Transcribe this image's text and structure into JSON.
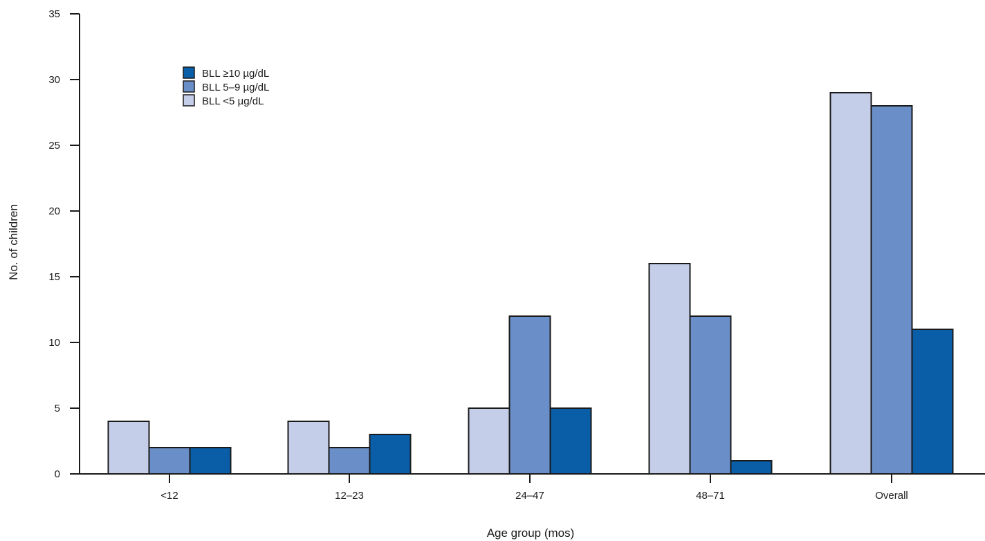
{
  "chart_data": {
    "type": "bar",
    "title": "",
    "xlabel": "Age group (mos)",
    "ylabel": "No. of children",
    "ylim": [
      0,
      35
    ],
    "yticks": [
      0,
      5,
      10,
      15,
      20,
      25,
      30,
      35
    ],
    "categories": [
      "<12",
      "12–23",
      "24–47",
      "48–71",
      "Overall"
    ],
    "series": [
      {
        "name": "BLL <5 µg/dL",
        "values": [
          4,
          4,
          5,
          16,
          29
        ],
        "color": "#c5cee8"
      },
      {
        "name": "BLL  5–9 µg/dL",
        "values": [
          2,
          2,
          12,
          12,
          28
        ],
        "color": "#6a8fc8"
      },
      {
        "name": "BLL  ≥10 µg/dL",
        "values": [
          2,
          3,
          5,
          1,
          11
        ],
        "color": "#0a5ea8"
      }
    ],
    "legend": {
      "placement": "top-left",
      "order": [
        2,
        1,
        0
      ]
    },
    "grid": false
  }
}
